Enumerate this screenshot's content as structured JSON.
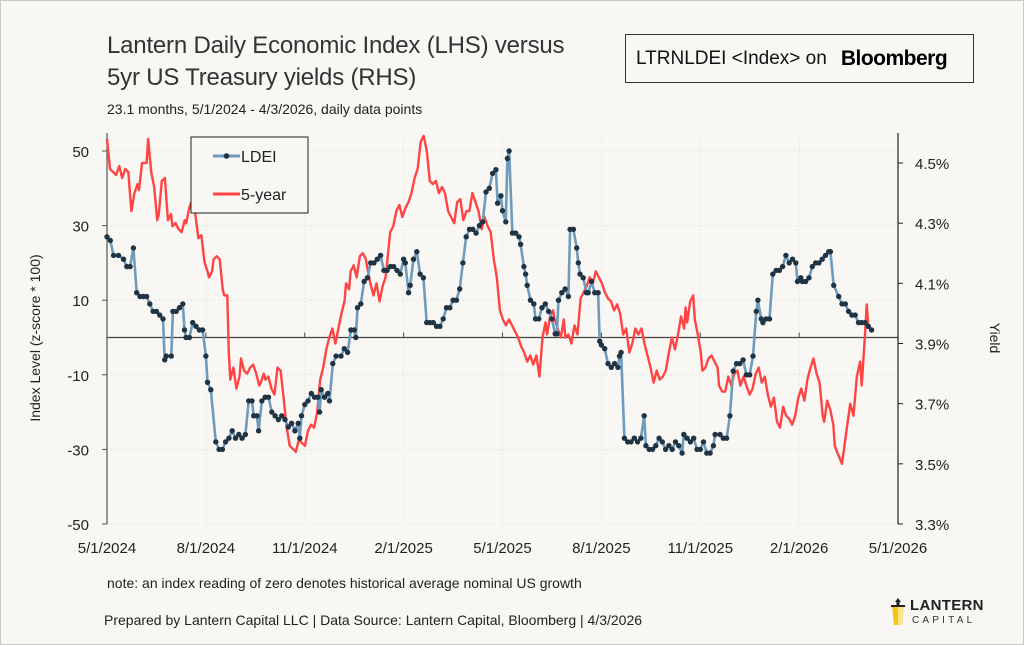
{
  "header": {
    "title_line1": "Lantern Daily Economic Index (LHS) versus",
    "title_line2": "5yr US Treasury yields (RHS)",
    "subtitle": "23.1 months, 5/1/2024 - 4/3/2026, daily data points",
    "bloomberg_ticker": "LTRNLDEI <Index> on",
    "bloomberg_logo": "Bloomberg"
  },
  "footer": {
    "note": "note: an index reading of zero denotes historical average nominal US growth",
    "prepared": "Prepared by Lantern Capital LLC | Data Source: Lantern Capital, Bloomberg | 4/3/2026",
    "logo_line1": "LANTERN",
    "logo_line2": "CAPITAL"
  },
  "colors": {
    "ldei": "#6f9bbd",
    "ldei_marker": "#1f3342",
    "five_year": "#ff4444",
    "background": "#f8f7f4",
    "logo_yellow": "#f5c518"
  },
  "chart_data": {
    "type": "line",
    "title": "Lantern Daily Economic Index (LHS) versus 5yr US Treasury yields (RHS)",
    "x_unit": "months since 5/1/2024",
    "xlim": [
      0,
      24
    ],
    "x_ticks": [
      {
        "value": 0,
        "label": "5/1/2024"
      },
      {
        "value": 3,
        "label": "8/1/2024"
      },
      {
        "value": 6,
        "label": "11/1/2024"
      },
      {
        "value": 9,
        "label": "2/1/2025"
      },
      {
        "value": 12,
        "label": "5/1/2025"
      },
      {
        "value": 15,
        "label": "8/1/2025"
      },
      {
        "value": 18,
        "label": "11/1/2025"
      },
      {
        "value": 21,
        "label": "2/1/2026"
      },
      {
        "value": 24,
        "label": "5/1/2026"
      }
    ],
    "ylabel_left": "Index Level (z-score * 100)",
    "ylim_left": [
      -50,
      50
    ],
    "y_ticks_left": [
      {
        "value": 50,
        "label": "50"
      },
      {
        "value": 30,
        "label": "30"
      },
      {
        "value": 10,
        "label": "10"
      },
      {
        "value": -10,
        "label": "-10"
      },
      {
        "value": -30,
        "label": "-30"
      },
      {
        "value": -50,
        "label": "-50"
      }
    ],
    "ylabel_right": "Yield",
    "ylim_right": [
      3.3,
      4.5
    ],
    "y_ticks_right": [
      {
        "value": 4.5,
        "label": "4.5%"
      },
      {
        "value": 4.3,
        "label": "4.3%"
      },
      {
        "value": 4.1,
        "label": "4.1%"
      },
      {
        "value": 3.9,
        "label": "3.9%"
      },
      {
        "value": 3.7,
        "label": "3.7%"
      },
      {
        "value": 3.5,
        "label": "3.5%"
      },
      {
        "value": 3.3,
        "label": "3.3%"
      }
    ],
    "zero_line": 0,
    "grid": true,
    "legend": {
      "position": "top-left",
      "entries": [
        "LDEI",
        "5-year"
      ]
    },
    "series": [
      {
        "name": "LDEI",
        "axis": "left",
        "marker": "dot",
        "points": [
          [
            0.0,
            27
          ],
          [
            0.1,
            26
          ],
          [
            0.2,
            22
          ],
          [
            0.35,
            22
          ],
          [
            0.5,
            21
          ],
          [
            0.6,
            19
          ],
          [
            0.7,
            19
          ],
          [
            0.8,
            24
          ],
          [
            0.9,
            12
          ],
          [
            1.0,
            11
          ],
          [
            1.1,
            11
          ],
          [
            1.2,
            11
          ],
          [
            1.3,
            9
          ],
          [
            1.4,
            7
          ],
          [
            1.5,
            7
          ],
          [
            1.6,
            6
          ],
          [
            1.7,
            5
          ],
          [
            1.75,
            -6
          ],
          [
            1.8,
            -5
          ],
          [
            1.95,
            -5
          ],
          [
            2.0,
            7
          ],
          [
            2.1,
            7
          ],
          [
            2.2,
            8
          ],
          [
            2.3,
            9
          ],
          [
            2.35,
            2
          ],
          [
            2.4,
            0
          ],
          [
            2.5,
            0
          ],
          [
            2.6,
            4
          ],
          [
            2.7,
            3
          ],
          [
            2.8,
            2
          ],
          [
            2.9,
            2
          ],
          [
            3.0,
            -5
          ],
          [
            3.05,
            -12
          ],
          [
            3.15,
            -14
          ],
          [
            3.3,
            -28
          ],
          [
            3.4,
            -30
          ],
          [
            3.5,
            -30
          ],
          [
            3.6,
            -28
          ],
          [
            3.7,
            -27
          ],
          [
            3.8,
            -25
          ],
          [
            3.9,
            -27
          ],
          [
            4.0,
            -26
          ],
          [
            4.1,
            -27
          ],
          [
            4.2,
            -26
          ],
          [
            4.3,
            -17
          ],
          [
            4.4,
            -17
          ],
          [
            4.45,
            -21
          ],
          [
            4.55,
            -21
          ],
          [
            4.6,
            -25
          ],
          [
            4.7,
            -17
          ],
          [
            4.8,
            -16
          ],
          [
            4.9,
            -16
          ],
          [
            5.0,
            -20
          ],
          [
            5.1,
            -21
          ],
          [
            5.2,
            -22
          ],
          [
            5.3,
            -21
          ],
          [
            5.4,
            -22
          ],
          [
            5.5,
            -24
          ],
          [
            5.6,
            -23
          ],
          [
            5.7,
            -25
          ],
          [
            5.8,
            -23
          ],
          [
            5.85,
            -27
          ],
          [
            5.9,
            -21
          ],
          [
            6.0,
            -18
          ],
          [
            6.1,
            -17
          ],
          [
            6.2,
            -15
          ],
          [
            6.3,
            -16
          ],
          [
            6.4,
            -16
          ],
          [
            6.45,
            -20
          ],
          [
            6.5,
            -14
          ],
          [
            6.6,
            -16
          ],
          [
            6.7,
            -15
          ],
          [
            6.75,
            -17
          ],
          [
            6.85,
            -7
          ],
          [
            6.95,
            -5
          ],
          [
            7.1,
            -5
          ],
          [
            7.2,
            -3
          ],
          [
            7.3,
            -4
          ],
          [
            7.4,
            2
          ],
          [
            7.5,
            2
          ],
          [
            7.55,
            0
          ],
          [
            7.6,
            8
          ],
          [
            7.7,
            9
          ],
          [
            7.8,
            15
          ],
          [
            7.9,
            16
          ],
          [
            8.0,
            20
          ],
          [
            8.1,
            20
          ],
          [
            8.2,
            21
          ],
          [
            8.3,
            22
          ],
          [
            8.4,
            18
          ],
          [
            8.5,
            18
          ],
          [
            8.6,
            19
          ],
          [
            8.7,
            19
          ],
          [
            8.8,
            18
          ],
          [
            8.9,
            17
          ],
          [
            9.0,
            21
          ],
          [
            9.05,
            20
          ],
          [
            9.15,
            12
          ],
          [
            9.2,
            14
          ],
          [
            9.3,
            21
          ],
          [
            9.4,
            23
          ],
          [
            9.5,
            17
          ],
          [
            9.6,
            16
          ],
          [
            9.7,
            4
          ],
          [
            9.8,
            4
          ],
          [
            9.9,
            4
          ],
          [
            10.0,
            3
          ],
          [
            10.1,
            3
          ],
          [
            10.2,
            5
          ],
          [
            10.3,
            8
          ],
          [
            10.4,
            8
          ],
          [
            10.5,
            10
          ],
          [
            10.6,
            10
          ],
          [
            10.7,
            13
          ],
          [
            10.8,
            20
          ],
          [
            10.9,
            27
          ],
          [
            11.0,
            29
          ],
          [
            11.1,
            29
          ],
          [
            11.2,
            28
          ],
          [
            11.3,
            30
          ],
          [
            11.4,
            31
          ],
          [
            11.5,
            39
          ],
          [
            11.6,
            40
          ],
          [
            11.7,
            44
          ],
          [
            11.8,
            45
          ],
          [
            11.85,
            36
          ],
          [
            11.95,
            38
          ],
          [
            12.0,
            34
          ],
          [
            12.1,
            31
          ],
          [
            12.15,
            48
          ],
          [
            12.2,
            50
          ],
          [
            12.3,
            28
          ],
          [
            12.4,
            28
          ],
          [
            12.5,
            27
          ],
          [
            12.55,
            25
          ],
          [
            12.65,
            19
          ],
          [
            12.7,
            17
          ],
          [
            12.75,
            14
          ],
          [
            12.85,
            10
          ],
          [
            12.95,
            9
          ],
          [
            13.0,
            5
          ],
          [
            13.1,
            5
          ],
          [
            13.2,
            8
          ],
          [
            13.3,
            9
          ],
          [
            13.4,
            7
          ],
          [
            13.5,
            5
          ],
          [
            13.6,
            1
          ],
          [
            13.65,
            1
          ],
          [
            13.7,
            10
          ],
          [
            13.8,
            12
          ],
          [
            13.9,
            13
          ],
          [
            14.0,
            11
          ],
          [
            14.05,
            29
          ],
          [
            14.15,
            29
          ],
          [
            14.25,
            24
          ],
          [
            14.3,
            20
          ],
          [
            14.35,
            17
          ],
          [
            14.45,
            16
          ],
          [
            14.55,
            12
          ],
          [
            14.6,
            12
          ],
          [
            14.7,
            15
          ],
          [
            14.8,
            12
          ],
          [
            14.9,
            12
          ],
          [
            14.95,
            -1
          ],
          [
            15.0,
            -2
          ],
          [
            15.1,
            -3
          ],
          [
            15.2,
            -7
          ],
          [
            15.3,
            -8
          ],
          [
            15.4,
            -7
          ],
          [
            15.5,
            -8
          ],
          [
            15.55,
            -5
          ],
          [
            15.6,
            -4
          ]
        ],
        "points_part2": [
          [
            15.6,
            -4
          ],
          [
            15.7,
            -27
          ],
          [
            15.8,
            -28
          ],
          [
            15.9,
            -28
          ],
          [
            16.0,
            -27
          ],
          [
            16.1,
            -28
          ],
          [
            16.2,
            -27
          ],
          [
            16.3,
            -21
          ],
          [
            16.35,
            -29
          ],
          [
            16.45,
            -30
          ],
          [
            16.55,
            -30
          ],
          [
            16.65,
            -29
          ],
          [
            16.75,
            -27
          ],
          [
            16.85,
            -28
          ],
          [
            16.95,
            -30
          ],
          [
            17.05,
            -29
          ],
          [
            17.15,
            -30
          ],
          [
            17.25,
            -28
          ],
          [
            17.35,
            -29
          ],
          [
            17.45,
            -31
          ],
          [
            17.5,
            -26
          ],
          [
            17.6,
            -27
          ],
          [
            17.7,
            -28
          ],
          [
            17.8,
            -27
          ],
          [
            17.9,
            -30
          ],
          [
            18.0,
            -30
          ],
          [
            18.1,
            -28
          ],
          [
            18.2,
            -31
          ],
          [
            18.3,
            -31
          ],
          [
            18.4,
            -29
          ],
          [
            18.45,
            -26
          ],
          [
            18.6,
            -26
          ],
          [
            18.7,
            -27
          ],
          [
            18.8,
            -27
          ],
          [
            18.9,
            -21
          ],
          [
            19.0,
            -9
          ],
          [
            19.1,
            -7
          ],
          [
            19.2,
            -7
          ],
          [
            19.3,
            -6
          ],
          [
            19.4,
            -10
          ],
          [
            19.5,
            -10
          ],
          [
            19.6,
            -5
          ],
          [
            19.7,
            7
          ],
          [
            19.75,
            10
          ],
          [
            19.85,
            5
          ],
          [
            19.9,
            4
          ],
          [
            20.0,
            5
          ],
          [
            20.1,
            5
          ],
          [
            20.2,
            17
          ],
          [
            20.3,
            18
          ],
          [
            20.4,
            18
          ],
          [
            20.5,
            19
          ],
          [
            20.6,
            22
          ],
          [
            20.7,
            20
          ],
          [
            20.8,
            21
          ],
          [
            20.9,
            20
          ],
          [
            20.95,
            15
          ],
          [
            21.05,
            16
          ],
          [
            21.1,
            15
          ],
          [
            21.2,
            15
          ],
          [
            21.3,
            16
          ],
          [
            21.4,
            19
          ],
          [
            21.5,
            20
          ],
          [
            21.6,
            20
          ],
          [
            21.7,
            21
          ],
          [
            21.8,
            22
          ],
          [
            21.9,
            23
          ],
          [
            21.95,
            23
          ],
          [
            22.05,
            14
          ],
          [
            22.2,
            11
          ],
          [
            22.3,
            9
          ],
          [
            22.4,
            9
          ],
          [
            22.5,
            7
          ],
          [
            22.6,
            6
          ],
          [
            22.7,
            6
          ],
          [
            22.8,
            4
          ],
          [
            22.9,
            4
          ],
          [
            23.0,
            4
          ],
          [
            23.1,
            3
          ],
          [
            23.2,
            2
          ]
        ]
      }
    ]
  }
}
